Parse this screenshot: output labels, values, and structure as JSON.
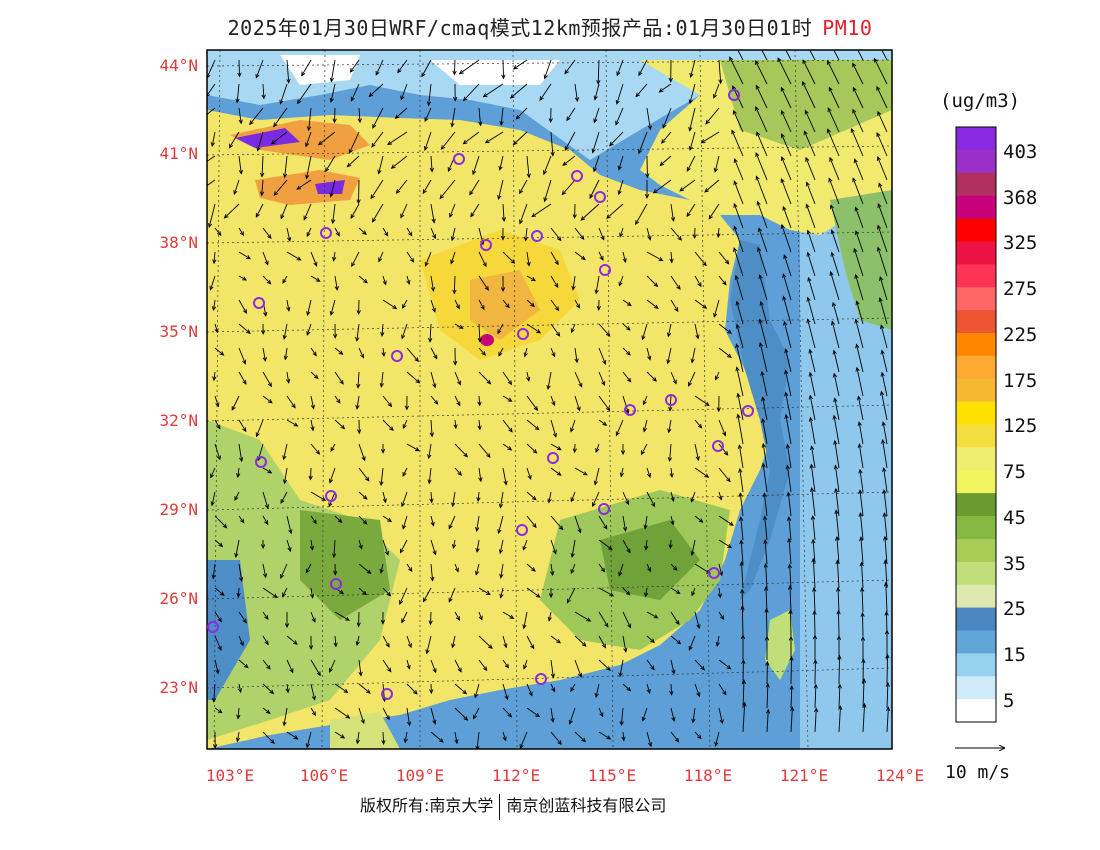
{
  "header": {
    "title": "2025年01月30日WRF/cmaq模式12km预报产品:01月30日01时",
    "pollutant": "PM10"
  },
  "axes": {
    "lat_labels": [
      "44°N",
      "41°N",
      "38°N",
      "35°N",
      "32°N",
      "29°N",
      "26°N",
      "23°N"
    ],
    "lat_values": [
      44,
      41,
      38,
      35,
      32,
      29,
      26,
      23
    ],
    "lon_labels": [
      "103°E",
      "106°E",
      "109°E",
      "112°E",
      "115°E",
      "118°E",
      "121°E",
      "124°E"
    ],
    "lon_values": [
      103,
      106,
      109,
      112,
      115,
      118,
      121,
      124
    ],
    "lat_range": [
      20.9,
      44.6
    ],
    "lon_range": [
      102.9,
      124.0
    ]
  },
  "colorbar": {
    "unit": "(ug/m3)",
    "labels": [
      "403",
      "368",
      "325",
      "275",
      "225",
      "175",
      "125",
      "75",
      "45",
      "35",
      "25",
      "15",
      "5"
    ],
    "colors": [
      "#8a2be2",
      "#9b30c8",
      "#b03060",
      "#c8007a",
      "#ff0000",
      "#ee1144",
      "#ff3355",
      "#ff6666",
      "#ee5533",
      "#ff8800",
      "#ffaa33",
      "#f5b830",
      "#ffe000",
      "#f5df40",
      "#f0ee70",
      "#f0f560",
      "#6a9a30",
      "#85b840",
      "#a8cc55",
      "#c0de7a",
      "#dde9b0",
      "#4a86c0",
      "#60a5d8",
      "#98d0ef",
      "#cfebf9",
      "#ffffff"
    ]
  },
  "wind_scale": {
    "label": "10 m/s"
  },
  "footer": {
    "left": "版权所有:南京大学",
    "right": "南京创蓝科技有限公司"
  },
  "map": {
    "land_color": "#f3e568",
    "sea_color": "#6aaadc",
    "station_color": "#8a2be2"
  }
}
